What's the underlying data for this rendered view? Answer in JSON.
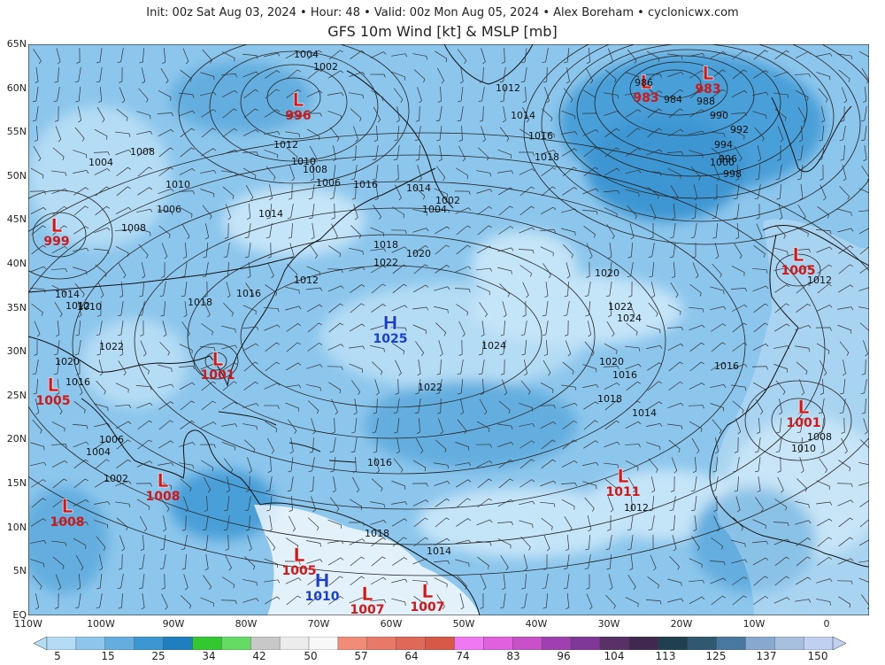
{
  "header": {
    "info": "Init: 00z Sat Aug 03, 2024 • Hour: 48 • Valid: 00z Mon Aug 05, 2024 • Alex Boreham • cyclonicwx.com",
    "title": "GFS 10m Wind [kt] & MSLP [mb]"
  },
  "lat_labels": [
    "65N",
    "60N",
    "55N",
    "50N",
    "45N",
    "40N",
    "35N",
    "30N",
    "25N",
    "20N",
    "15N",
    "10N",
    "5N",
    "EQ"
  ],
  "lon_labels": [
    "110W",
    "100W",
    "90W",
    "80W",
    "70W",
    "60W",
    "50W",
    "40W",
    "30W",
    "20W",
    "10W",
    "0"
  ],
  "pressure_centers": [
    {
      "type": "L",
      "value": "996"
    },
    {
      "type": "L",
      "value": "983"
    },
    {
      "type": "L",
      "value": "983"
    },
    {
      "type": "L",
      "value": "999"
    },
    {
      "type": "H",
      "value": "1025"
    },
    {
      "type": "L",
      "value": "1001"
    },
    {
      "type": "L",
      "value": "1005"
    },
    {
      "type": "L",
      "value": "1005"
    },
    {
      "type": "L",
      "value": "1001"
    },
    {
      "type": "L",
      "value": "1008"
    },
    {
      "type": "L",
      "value": "1008"
    },
    {
      "type": "L",
      "value": "1011"
    },
    {
      "type": "L",
      "value": "1005"
    },
    {
      "type": "H",
      "value": "1010"
    },
    {
      "type": "L",
      "value": "1007"
    },
    {
      "type": "L",
      "value": "1007"
    }
  ],
  "isobar_labels": [
    "1004",
    "1002",
    "1012",
    "1014",
    "1016",
    "1018",
    "1020",
    "1022",
    "1024",
    "1022",
    "1020",
    "1018",
    "1016",
    "1014",
    "1012",
    "1010",
    "1008",
    "1006",
    "1004",
    "1002",
    "1000",
    "998",
    "996",
    "994",
    "992",
    "990",
    "988",
    "986",
    "984",
    "1024",
    "1022",
    "1020",
    "1018",
    "1016",
    "1014",
    "1012",
    "1010",
    "1008",
    "1006",
    "1004",
    "1002",
    "1016",
    "1014",
    "1012",
    "1010",
    "1008",
    "1006",
    "1004",
    "1012",
    "1014",
    "1016",
    "1018",
    "1014",
    "1016",
    "1018",
    "1020",
    "1022",
    "1008",
    "1010",
    "1012",
    "1016"
  ],
  "colorbar": {
    "labels": [
      "5",
      "15",
      "25",
      "34",
      "42",
      "50",
      "57",
      "64",
      "74",
      "83",
      "96",
      "104",
      "113",
      "125",
      "137",
      "150"
    ],
    "colors": [
      "#b4dcf4",
      "#8cc6ec",
      "#64aedf",
      "#3c96d2",
      "#1e7ec0",
      "#32c832",
      "#64dc64",
      "#c8c8c8",
      "#ececec",
      "#f8f8f8",
      "#f08c78",
      "#e87868",
      "#e06858",
      "#d85848",
      "#f078f0",
      "#e060e0",
      "#c850c8",
      "#a040b0",
      "#803898",
      "#5a3068",
      "#402850",
      "#204050",
      "#305870",
      "#4878a0",
      "#88a8d0",
      "#a8c0e0",
      "#c0d0f0"
    ]
  }
}
